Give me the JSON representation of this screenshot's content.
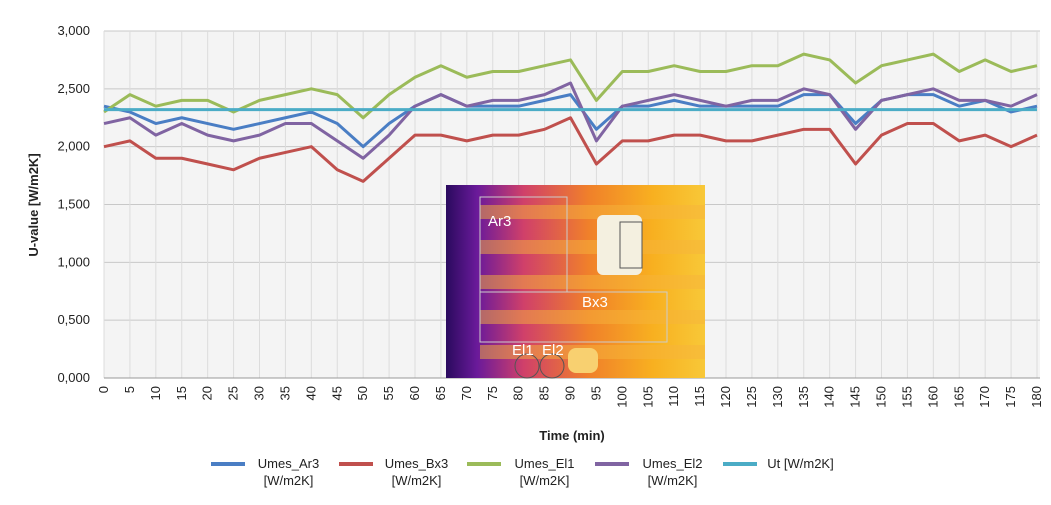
{
  "chart_data": {
    "type": "line",
    "y_label": "U-value  [W/m2K]",
    "x_label": "Time (min)",
    "x": [
      0,
      5,
      10,
      15,
      20,
      25,
      30,
      35,
      40,
      45,
      50,
      55,
      60,
      65,
      70,
      75,
      80,
      85,
      90,
      95,
      100,
      105,
      110,
      115,
      120,
      125,
      130,
      135,
      140,
      145,
      150,
      155,
      160,
      165,
      170,
      175,
      180
    ],
    "series": [
      {
        "name": "Umes_Ar3 [W/m2K]",
        "color": "#4a7ec4",
        "values": [
          2.35,
          2.3,
          2.2,
          2.25,
          2.2,
          2.15,
          2.2,
          2.25,
          2.3,
          2.2,
          2.0,
          2.2,
          2.35,
          2.45,
          2.35,
          2.35,
          2.35,
          2.4,
          2.45,
          2.15,
          2.35,
          2.35,
          2.4,
          2.35,
          2.35,
          2.35,
          2.35,
          2.45,
          2.45,
          2.2,
          2.4,
          2.45,
          2.45,
          2.35,
          2.4,
          2.3,
          2.35
        ]
      },
      {
        "name": "Umes_Bx3 [W/m2K]",
        "color": "#c0504d",
        "values": [
          2.0,
          2.05,
          1.9,
          1.9,
          1.85,
          1.8,
          1.9,
          1.95,
          2.0,
          1.8,
          1.7,
          1.9,
          2.1,
          2.1,
          2.05,
          2.1,
          2.1,
          2.15,
          2.25,
          1.85,
          2.05,
          2.05,
          2.1,
          2.1,
          2.05,
          2.05,
          2.1,
          2.15,
          2.15,
          1.85,
          2.1,
          2.2,
          2.2,
          2.05,
          2.1,
          2.0,
          2.1
        ]
      },
      {
        "name": "Umes_El1 [W/m2K]",
        "color": "#9bbb59",
        "values": [
          2.3,
          2.45,
          2.35,
          2.4,
          2.4,
          2.3,
          2.4,
          2.45,
          2.5,
          2.45,
          2.25,
          2.45,
          2.6,
          2.7,
          2.6,
          2.65,
          2.65,
          2.7,
          2.75,
          2.4,
          2.65,
          2.65,
          2.7,
          2.65,
          2.65,
          2.7,
          2.7,
          2.8,
          2.75,
          2.55,
          2.7,
          2.75,
          2.8,
          2.65,
          2.75,
          2.65,
          2.7
        ]
      },
      {
        "name": "Umes_El2 [W/m2K]",
        "color": "#8064a2",
        "values": [
          2.2,
          2.25,
          2.1,
          2.2,
          2.1,
          2.05,
          2.1,
          2.2,
          2.2,
          2.05,
          1.9,
          2.1,
          2.35,
          2.45,
          2.35,
          2.4,
          2.4,
          2.45,
          2.55,
          2.05,
          2.35,
          2.4,
          2.45,
          2.4,
          2.35,
          2.4,
          2.4,
          2.5,
          2.45,
          2.15,
          2.4,
          2.45,
          2.5,
          2.4,
          2.4,
          2.35,
          2.45
        ]
      },
      {
        "name": "Ut [W/m2K]",
        "color": "#4bacc6",
        "values": [
          2.32,
          2.32,
          2.32,
          2.32,
          2.32,
          2.32,
          2.32,
          2.32,
          2.32,
          2.32,
          2.32,
          2.32,
          2.32,
          2.32,
          2.32,
          2.32,
          2.32,
          2.32,
          2.32,
          2.32,
          2.32,
          2.32,
          2.32,
          2.32,
          2.32,
          2.32,
          2.32,
          2.32,
          2.32,
          2.32,
          2.32,
          2.32,
          2.32,
          2.32,
          2.32,
          2.32,
          2.32
        ]
      }
    ],
    "xlim": [
      0,
      180
    ],
    "xticks": [
      0,
      5,
      10,
      15,
      20,
      25,
      30,
      35,
      40,
      45,
      50,
      55,
      60,
      65,
      70,
      75,
      80,
      85,
      90,
      95,
      100,
      105,
      110,
      115,
      120,
      125,
      130,
      135,
      140,
      145,
      150,
      155,
      160,
      165,
      170,
      175,
      180
    ],
    "ylim": [
      0,
      3
    ],
    "yticks": [
      {
        "value": 0,
        "label": "0,000"
      },
      {
        "value": 0.5,
        "label": "0,500"
      },
      {
        "value": 1,
        "label": "1,000"
      },
      {
        "value": 1.5,
        "label": "1,500"
      },
      {
        "value": 2,
        "label": "2,000"
      },
      {
        "value": 2.5,
        "label": "2,500"
      },
      {
        "value": 3,
        "label": "3,000"
      }
    ],
    "grid": true,
    "inset": {
      "labels": [
        "Ar3",
        "Bx3",
        "El1",
        "El2"
      ]
    }
  }
}
